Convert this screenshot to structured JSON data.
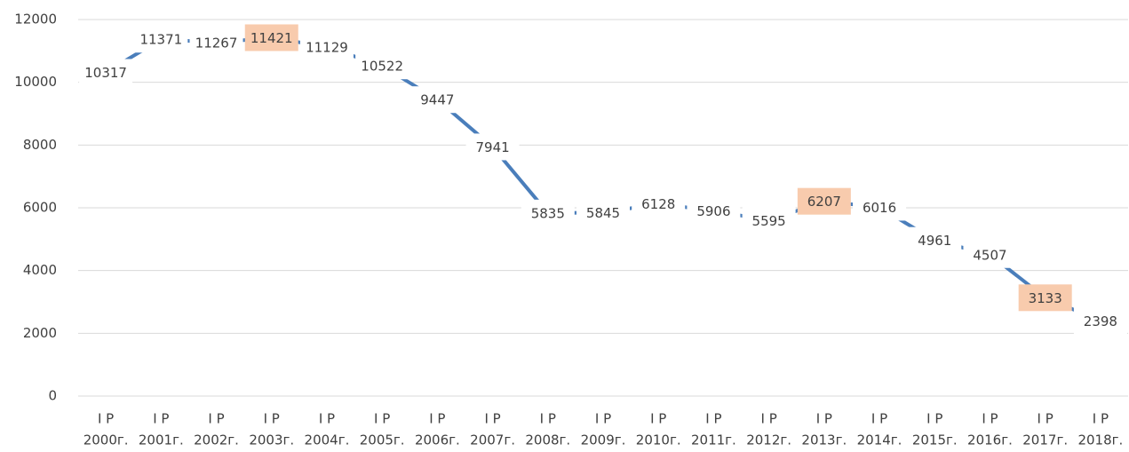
{
  "chart_data": {
    "type": "line",
    "categories": [
      [
        "I P",
        "2000г."
      ],
      [
        "I P",
        "2001г."
      ],
      [
        "I P",
        "2002г."
      ],
      [
        "I P",
        "2003г."
      ],
      [
        "I P",
        "2004г."
      ],
      [
        "I P",
        "2005г."
      ],
      [
        "I P",
        "2006г."
      ],
      [
        "I P",
        "2007г."
      ],
      [
        "I P",
        "2008г."
      ],
      [
        "I P",
        "2009г."
      ],
      [
        "I P",
        "2010г."
      ],
      [
        "I P",
        "2011г."
      ],
      [
        "I P",
        "2012г."
      ],
      [
        "I P",
        "2013г."
      ],
      [
        "I P",
        "2014г."
      ],
      [
        "I P",
        "2015г."
      ],
      [
        "I P",
        "2016г."
      ],
      [
        "I P",
        "2017г."
      ],
      [
        "I P",
        "2018г."
      ]
    ],
    "values": [
      10317,
      11371,
      11267,
      11421,
      11129,
      10522,
      9447,
      7941,
      5835,
      5845,
      6128,
      5906,
      5595,
      6207,
      6016,
      4961,
      4507,
      3133,
      2398
    ],
    "color": "#4a7ebb",
    "highlighted_labels": [
      3,
      13,
      17
    ],
    "highlight_color": "#f8cbad",
    "ylim": [
      0,
      12000
    ],
    "yticks": [
      0,
      2000,
      4000,
      6000,
      8000,
      10000,
      12000
    ],
    "grid": true
  }
}
